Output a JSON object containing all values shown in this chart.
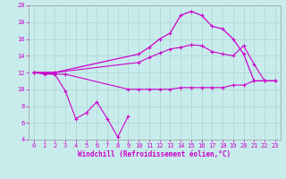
{
  "background_color": "#c8ecec",
  "grid_color": "#b0d8d8",
  "line_color": "#cc00cc",
  "xlabel": "Windchill (Refroidissement éolien,°C)",
  "xlim": [
    -0.5,
    23.5
  ],
  "ylim": [
    4,
    20
  ],
  "yticks": [
    4,
    6,
    8,
    10,
    12,
    14,
    16,
    18,
    20
  ],
  "xticks": [
    0,
    1,
    2,
    3,
    4,
    5,
    6,
    7,
    8,
    9,
    10,
    11,
    12,
    13,
    14,
    15,
    16,
    17,
    18,
    19,
    20,
    21,
    22,
    23
  ],
  "series1_x": [
    0,
    1,
    2,
    3,
    4,
    5,
    6,
    7,
    8,
    9
  ],
  "series1_y": [
    12,
    11.9,
    11.8,
    9.8,
    6.5,
    7.2,
    8.5,
    6.5,
    4.3,
    6.8
  ],
  "series2_x": [
    0,
    1,
    2,
    3,
    9,
    10,
    11,
    12,
    13,
    14,
    15,
    16,
    17,
    18,
    19,
    20,
    21,
    22,
    23
  ],
  "series2_y": [
    12,
    11.8,
    11.8,
    11.8,
    10.0,
    10.0,
    10.0,
    10.0,
    10.0,
    10.2,
    10.2,
    10.2,
    10.2,
    10.2,
    10.5,
    10.5,
    11.0,
    11.0,
    11.0
  ],
  "series3_x": [
    0,
    2,
    10,
    11,
    12,
    13,
    14,
    15,
    16,
    17,
    18,
    19,
    20,
    21,
    22,
    23
  ],
  "series3_y": [
    12,
    12,
    14.2,
    15.0,
    16.0,
    16.7,
    18.8,
    19.3,
    18.8,
    17.5,
    17.2,
    16.0,
    14.2,
    11.0,
    11.0,
    11.0
  ],
  "series4_x": [
    0,
    2,
    10,
    11,
    12,
    13,
    14,
    15,
    16,
    17,
    18,
    19,
    20,
    21,
    22,
    23
  ],
  "series4_y": [
    12,
    12,
    13.2,
    13.8,
    14.3,
    14.8,
    15.0,
    15.3,
    15.2,
    14.5,
    14.2,
    14.0,
    15.2,
    13.0,
    11.0,
    11.0
  ]
}
